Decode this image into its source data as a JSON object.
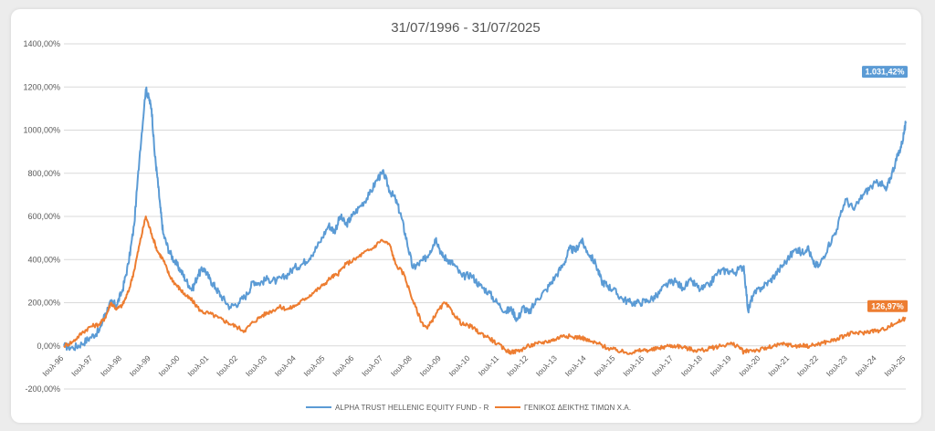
{
  "chart_data": {
    "type": "line",
    "title": "31/07/1996 - 31/07/2025",
    "xlabel": "",
    "ylabel": "",
    "ylim": [
      -200,
      1400
    ],
    "y_ticks": [
      "1400,00%",
      "1200,00%",
      "1000,00%",
      "800,00%",
      "600,00%",
      "400,00%",
      "200,00%",
      "0,00%",
      "-200,00%"
    ],
    "y_tick_values": [
      1400,
      1200,
      1000,
      800,
      600,
      400,
      200,
      0,
      -200
    ],
    "x_ticks": [
      "Ιουλ-96",
      "Ιουλ-97",
      "Ιουλ-98",
      "Ιουλ-99",
      "Ιουλ-00",
      "Ιουλ-01",
      "Ιουλ-02",
      "Ιουλ-03",
      "Ιουλ-04",
      "Ιουλ-05",
      "Ιουλ-06",
      "Ιουλ-07",
      "Ιουλ-08",
      "Ιουλ-09",
      "Ιουλ-10",
      "Ιουλ-11",
      "Ιουλ-12",
      "Ιουλ-13",
      "Ιουλ-14",
      "Ιουλ-15",
      "Ιουλ-16",
      "Ιουλ-17",
      "Ιουλ-18",
      "Ιουλ-19",
      "Ιουλ-20",
      "Ιουλ-21",
      "Ιουλ-22",
      "Ιουλ-23",
      "Ιουλ-24",
      "Ιουλ-25"
    ],
    "x_tick_years": [
      1996.58,
      1997.58,
      1998.58,
      1999.58,
      2000.58,
      2001.58,
      2002.58,
      2003.58,
      2004.58,
      2005.58,
      2006.58,
      2007.58,
      2008.58,
      2009.58,
      2010.58,
      2011.58,
      2012.58,
      2013.58,
      2014.58,
      2015.58,
      2016.58,
      2017.58,
      2018.58,
      2019.58,
      2020.58,
      2021.58,
      2022.58,
      2023.58,
      2024.58,
      2025.58
    ],
    "x_range": [
      1996.58,
      2025.58
    ],
    "grid": true,
    "legend_position": "bottom",
    "series": [
      {
        "name": "ALPHA TRUST HELLENIC EQUITY FUND - R",
        "color": "#5b9bd5",
        "end_label": "1.031,42%",
        "x": [
          1996.58,
          1996.9,
          1997.2,
          1997.5,
          1997.8,
          1998.0,
          1998.2,
          1998.4,
          1998.6,
          1998.8,
          1999.0,
          1999.2,
          1999.4,
          1999.5,
          1999.6,
          1999.7,
          1999.8,
          1999.9,
          2000.0,
          2000.2,
          2000.4,
          2000.6,
          2000.8,
          2001.0,
          2001.2,
          2001.4,
          2001.6,
          2001.8,
          2002.0,
          2002.3,
          2002.6,
          2002.9,
          2003.1,
          2003.3,
          2003.6,
          2003.9,
          2004.2,
          2004.5,
          2004.8,
          2005.1,
          2005.4,
          2005.7,
          2005.9,
          2006.1,
          2006.3,
          2006.5,
          2006.8,
          2007.1,
          2007.4,
          2007.6,
          2007.8,
          2008.0,
          2008.2,
          2008.4,
          2008.6,
          2008.8,
          2009.0,
          2009.2,
          2009.4,
          2009.6,
          2009.8,
          2010.0,
          2010.3,
          2010.6,
          2010.9,
          2011.2,
          2011.5,
          2011.8,
          2012.0,
          2012.2,
          2012.4,
          2012.6,
          2012.9,
          2013.2,
          2013.5,
          2013.8,
          2014.0,
          2014.2,
          2014.4,
          2014.6,
          2014.9,
          2015.1,
          2015.3,
          2015.5,
          2015.8,
          2016.1,
          2016.4,
          2016.7,
          2017.0,
          2017.3,
          2017.6,
          2017.9,
          2018.2,
          2018.5,
          2018.8,
          2019.1,
          2019.4,
          2019.7,
          2020.0,
          2020.15,
          2020.3,
          2020.6,
          2020.9,
          2021.2,
          2021.5,
          2021.8,
          2022.0,
          2022.2,
          2022.4,
          2022.6,
          2022.9,
          2023.2,
          2023.5,
          2023.8,
          2024.1,
          2024.4,
          2024.7,
          2024.9,
          2025.1,
          2025.3,
          2025.45,
          2025.58
        ],
        "values": [
          0,
          -10,
          10,
          40,
          70,
          150,
          200,
          190,
          260,
          380,
          560,
          900,
          1190,
          1150,
          1100,
          900,
          780,
          640,
          520,
          440,
          390,
          350,
          300,
          260,
          330,
          360,
          310,
          270,
          230,
          180,
          200,
          240,
          300,
          290,
          310,
          300,
          320,
          360,
          380,
          420,
          480,
          560,
          530,
          600,
          560,
          600,
          650,
          700,
          780,
          800,
          720,
          680,
          600,
          480,
          360,
          380,
          400,
          440,
          500,
          420,
          400,
          380,
          320,
          330,
          280,
          250,
          200,
          160,
          170,
          120,
          180,
          150,
          220,
          260,
          320,
          380,
          450,
          440,
          490,
          440,
          380,
          300,
          280,
          260,
          220,
          200,
          200,
          210,
          230,
          280,
          300,
          270,
          300,
          260,
          280,
          340,
          350,
          340,
          370,
          160,
          230,
          270,
          300,
          350,
          400,
          450,
          430,
          460,
          380,
          370,
          460,
          540,
          680,
          630,
          700,
          740,
          760,
          720,
          800,
          880,
          940,
          1031.42
        ]
      },
      {
        "name": "ΓΕΝΙΚΟΣ ΔΕΙΚΤΗΣ ΤΙΜΩΝ Χ.Α.",
        "color": "#ed7d31",
        "end_label": "126,97%",
        "x": [
          1996.58,
          1996.9,
          1997.2,
          1997.5,
          1997.8,
          1998.0,
          1998.2,
          1998.4,
          1998.6,
          1998.8,
          1999.0,
          1999.2,
          1999.4,
          1999.6,
          1999.8,
          2000.0,
          2000.2,
          2000.4,
          2000.6,
          2000.8,
          2001.0,
          2001.3,
          2001.6,
          2001.9,
          2002.2,
          2002.5,
          2002.8,
          2003.1,
          2003.4,
          2003.7,
          2004.0,
          2004.3,
          2004.6,
          2004.9,
          2005.2,
          2005.5,
          2005.8,
          2006.0,
          2006.3,
          2006.6,
          2006.9,
          2007.2,
          2007.5,
          2007.8,
          2008.0,
          2008.3,
          2008.6,
          2008.9,
          2009.1,
          2009.4,
          2009.7,
          2010.0,
          2010.3,
          2010.6,
          2010.9,
          2011.2,
          2011.5,
          2011.8,
          2012.0,
          2012.3,
          2012.6,
          2012.9,
          2013.2,
          2013.5,
          2013.8,
          2014.1,
          2014.4,
          2014.7,
          2015.0,
          2015.3,
          2015.6,
          2015.9,
          2016.2,
          2016.5,
          2016.8,
          2017.1,
          2017.4,
          2017.7,
          2018.0,
          2018.3,
          2018.6,
          2018.9,
          2019.2,
          2019.5,
          2019.8,
          2020.0,
          2020.2,
          2020.5,
          2020.8,
          2021.1,
          2021.4,
          2021.7,
          2022.0,
          2022.3,
          2022.6,
          2022.9,
          2023.2,
          2023.5,
          2023.8,
          2024.1,
          2024.4,
          2024.7,
          2025.0,
          2025.3,
          2025.58
        ],
        "values": [
          0,
          20,
          60,
          90,
          100,
          130,
          200,
          170,
          190,
          250,
          350,
          480,
          600,
          520,
          440,
          400,
          330,
          290,
          260,
          230,
          210,
          160,
          150,
          130,
          110,
          90,
          70,
          110,
          140,
          160,
          180,
          170,
          190,
          220,
          250,
          280,
          320,
          330,
          380,
          400,
          430,
          450,
          490,
          470,
          380,
          330,
          210,
          110,
          80,
          150,
          200,
          150,
          100,
          90,
          60,
          40,
          10,
          -20,
          -30,
          -20,
          0,
          10,
          20,
          30,
          50,
          40,
          40,
          20,
          10,
          -10,
          -20,
          -30,
          -30,
          -20,
          -20,
          -10,
          0,
          0,
          -10,
          -20,
          -20,
          -10,
          0,
          10,
          0,
          -30,
          -20,
          -20,
          -10,
          0,
          10,
          0,
          0,
          0,
          10,
          20,
          30,
          50,
          60,
          60,
          70,
          70,
          90,
          110,
          126.97
        ]
      }
    ]
  }
}
